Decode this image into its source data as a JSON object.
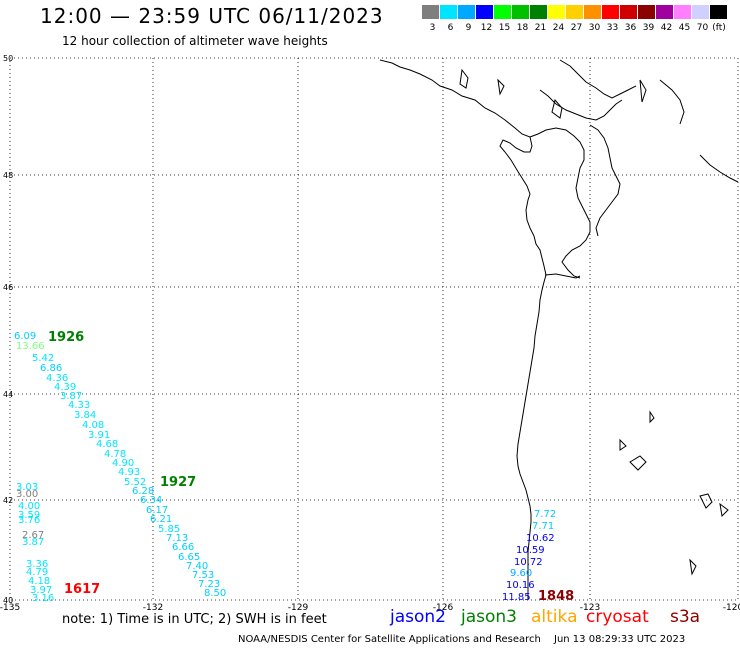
{
  "title": "12:00  —  23:59 UTC 06/11/2023",
  "subtitle": "12 hour collection of altimeter wave heights",
  "legend": {
    "unit": "(ft)",
    "swatches": [
      {
        "label": "3",
        "color": "#7f7f7f"
      },
      {
        "label": "6",
        "color": "#00e5ff"
      },
      {
        "label": "9",
        "color": "#00a8ff"
      },
      {
        "label": "12",
        "color": "#0000ff"
      },
      {
        "label": "15",
        "color": "#00ff00"
      },
      {
        "label": "18",
        "color": "#00c000"
      },
      {
        "label": "21",
        "color": "#008000"
      },
      {
        "label": "24",
        "color": "#ffff00"
      },
      {
        "label": "27",
        "color": "#ffd000"
      },
      {
        "label": "30",
        "color": "#ff9000"
      },
      {
        "label": "33",
        "color": "#ff0000"
      },
      {
        "label": "36",
        "color": "#d00000"
      },
      {
        "label": "39",
        "color": "#8b0000"
      },
      {
        "label": "42",
        "color": "#a000a0"
      },
      {
        "label": "45",
        "color": "#ff80ff"
      },
      {
        "label": "70",
        "color": "#d0d0ff"
      },
      {
        "label": "",
        "color": "#000000"
      }
    ]
  },
  "axes": {
    "lat_labels": [
      "50",
      "48",
      "46",
      "44",
      "42",
      "40"
    ],
    "lon_labels": [
      "-135",
      "-132",
      "-129",
      "-126",
      "-123",
      "-120"
    ]
  },
  "tracks": [
    {
      "id": "track-1926",
      "time": "1926",
      "time_color": "#008000",
      "values": [
        {
          "t": "6.09",
          "c": "#00cfff"
        },
        {
          "t": "13.66",
          "c": "#7fff7f"
        },
        {
          "t": "5.42",
          "c": "#00e5ff"
        },
        {
          "t": "6.86",
          "c": "#00cfff"
        },
        {
          "t": "4.36",
          "c": "#00e5ff"
        },
        {
          "t": "4.39",
          "c": "#00e5ff"
        },
        {
          "t": "3.87",
          "c": "#00e5ff"
        },
        {
          "t": "4.33",
          "c": "#00e5ff"
        },
        {
          "t": "3.84",
          "c": "#00e5ff"
        },
        {
          "t": "4.08",
          "c": "#00e5ff"
        },
        {
          "t": "3.91",
          "c": "#00e5ff"
        },
        {
          "t": "4.68",
          "c": "#00e5ff"
        },
        {
          "t": "4.78",
          "c": "#00e5ff"
        },
        {
          "t": "4.90",
          "c": "#00e5ff"
        },
        {
          "t": "4.93",
          "c": "#00e5ff"
        },
        {
          "t": "5.52",
          "c": "#00e5ff"
        },
        {
          "t": "6.28",
          "c": "#00cfff"
        },
        {
          "t": "6.34",
          "c": "#00cfff"
        },
        {
          "t": "6.17",
          "c": "#00cfff"
        },
        {
          "t": "6.21",
          "c": "#00cfff"
        },
        {
          "t": "5.85",
          "c": "#00e5ff"
        },
        {
          "t": "7.13",
          "c": "#00cfff"
        },
        {
          "t": "6.66",
          "c": "#00cfff"
        },
        {
          "t": "6.65",
          "c": "#00cfff"
        },
        {
          "t": "7.40",
          "c": "#00cfff"
        },
        {
          "t": "7.53",
          "c": "#00cfff"
        },
        {
          "t": "7.23",
          "c": "#00cfff"
        },
        {
          "t": "8.50",
          "c": "#00cfff"
        }
      ]
    },
    {
      "id": "track-1927",
      "time": "1927",
      "time_color": "#008000",
      "values": []
    },
    {
      "id": "track-1617",
      "time": "1617",
      "time_color": "#ff0000",
      "values": [
        {
          "t": "3.03",
          "c": "#00e5ff"
        },
        {
          "t": "3.00",
          "c": "#7f7f7f"
        },
        {
          "t": "4.00",
          "c": "#00e5ff"
        },
        {
          "t": "3.59",
          "c": "#00e5ff"
        },
        {
          "t": "3.76",
          "c": "#00e5ff"
        },
        {
          "t": "2.67",
          "c": "#7f7f7f"
        },
        {
          "t": "3.87",
          "c": "#00e5ff"
        },
        {
          "t": "3.36",
          "c": "#00e5ff"
        },
        {
          "t": "4.79",
          "c": "#00e5ff"
        },
        {
          "t": "4.18",
          "c": "#00e5ff"
        },
        {
          "t": "3.97",
          "c": "#00e5ff"
        },
        {
          "t": "3.16",
          "c": "#00e5ff"
        }
      ]
    },
    {
      "id": "track-1848",
      "time": "1848",
      "time_color": "#8b0000",
      "values": [
        {
          "t": "7.72",
          "c": "#00cfff"
        },
        {
          "t": "7.71",
          "c": "#00cfff"
        },
        {
          "t": "10.62",
          "c": "#0000ff"
        },
        {
          "t": "10.59",
          "c": "#0000ff"
        },
        {
          "t": "10.72",
          "c": "#0000ff"
        },
        {
          "t": "9.60",
          "c": "#00a8ff"
        },
        {
          "t": "10.16",
          "c": "#0000ff"
        },
        {
          "t": "11.85",
          "c": "#0000ff"
        }
      ]
    }
  ],
  "note": "note:  1) Time is in UTC;  2) SWH is in feet",
  "satellites": [
    {
      "name": "jason2",
      "color": "#0000ff"
    },
    {
      "name": "jason3",
      "color": "#008000"
    },
    {
      "name": "altika",
      "color": "#ffa500"
    },
    {
      "name": "cryosat",
      "color": "#ff0000"
    },
    {
      "name": "s3a",
      "color": "#8b0000"
    }
  ],
  "footer": {
    "center": "NOAA/NESDIS Center for Satellite Applications and Research",
    "timestamp": "Jun 13 08:29:33 UTC 2023"
  }
}
